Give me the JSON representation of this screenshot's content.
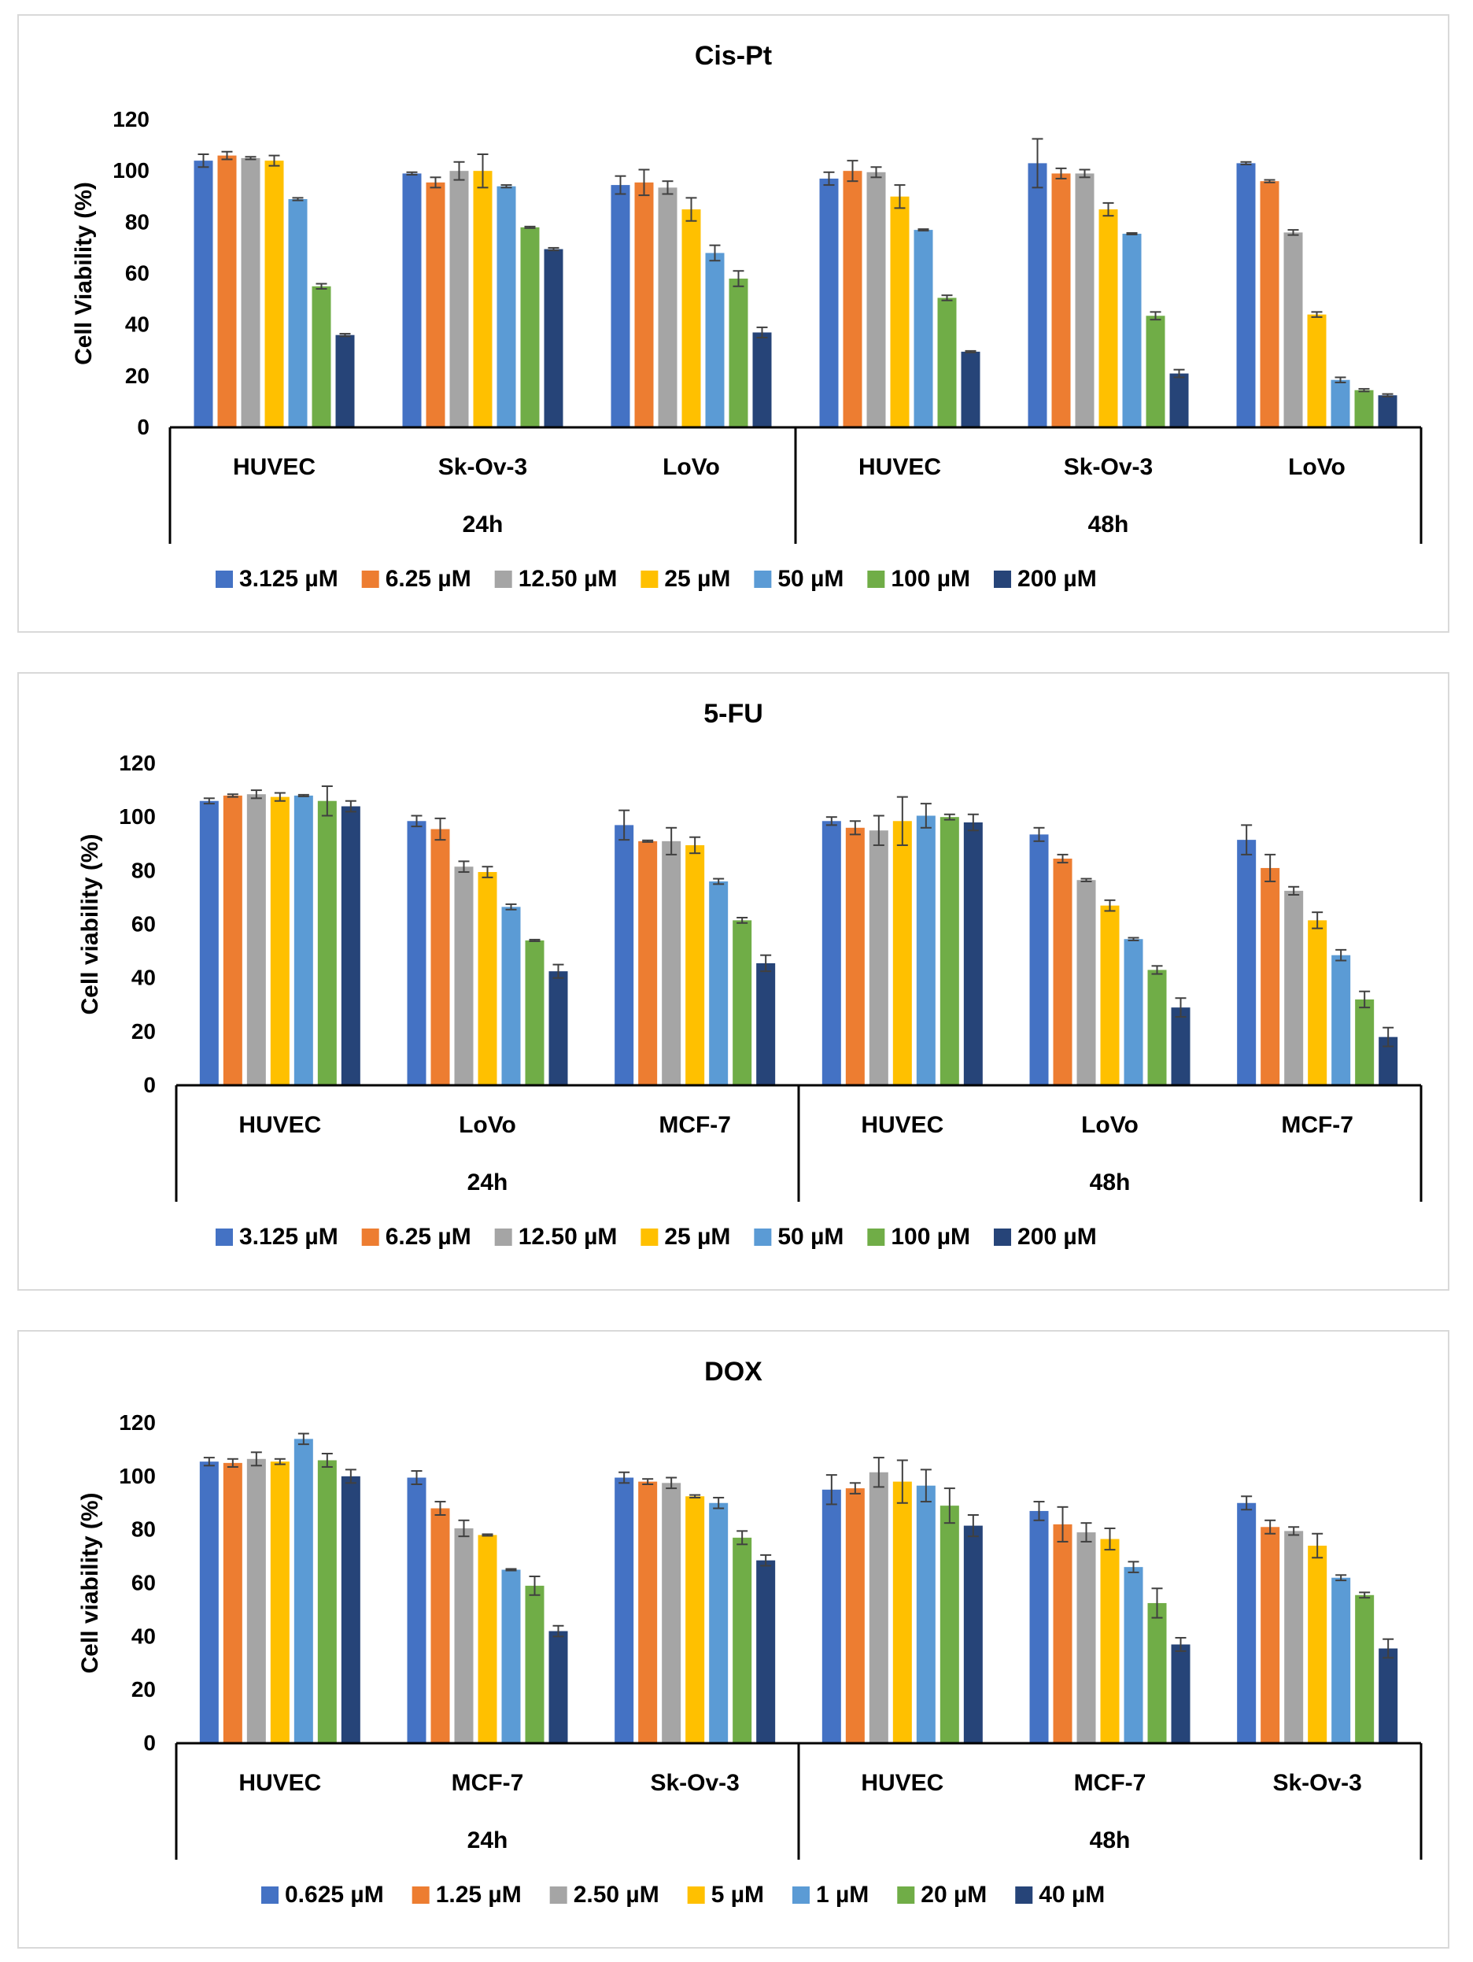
{
  "chart_data": [
    {
      "type": "bar",
      "title": "Cis-Pt",
      "ylabel": "Cell Viability (%)",
      "ylim": [
        0,
        120
      ],
      "yticks": [
        "0",
        "20",
        "40",
        "60",
        "80",
        "100",
        "120"
      ],
      "time_groups": [
        "24h",
        "48h"
      ],
      "categories": [
        "HUVEC",
        "Sk-Ov-3",
        "LoVo",
        "HUVEC",
        "Sk-Ov-3",
        "LoVo"
      ],
      "legend_position": "bottom",
      "series": [
        {
          "name": "3.125 µM",
          "color": "#4472c4",
          "values": [
            104,
            99,
            94.5,
            97,
            103,
            103
          ],
          "errors": [
            2.5,
            0.5,
            3.5,
            2.5,
            9.5,
            0.5
          ]
        },
        {
          "name": "6.25 µM",
          "color": "#ed7d31",
          "values": [
            106,
            95.5,
            95.5,
            100,
            99,
            96
          ],
          "errors": [
            1.5,
            2,
            5,
            4,
            2,
            0.5
          ]
        },
        {
          "name": "12.50 µM",
          "color": "#a5a5a5",
          "values": [
            105,
            100,
            93.5,
            99.5,
            99,
            76
          ],
          "errors": [
            0.5,
            3.5,
            2.5,
            2,
            1.5,
            1
          ]
        },
        {
          "name": "25 µM",
          "color": "#ffc000",
          "values": [
            104,
            100,
            85,
            90,
            85,
            44
          ],
          "errors": [
            2,
            6.5,
            4.5,
            4.5,
            2.5,
            1
          ]
        },
        {
          "name": "50 µM",
          "color": "#5b9bd5",
          "values": [
            89,
            94,
            68,
            77,
            75.5,
            18.5
          ],
          "errors": [
            0.5,
            0.5,
            3,
            0.3,
            0.3,
            1
          ]
        },
        {
          "name": "100 µM",
          "color": "#70ad47",
          "values": [
            55,
            78,
            58,
            50.5,
            43.5,
            14.5
          ],
          "errors": [
            1,
            0.3,
            3,
            1,
            1.5,
            0.5
          ]
        },
        {
          "name": "200 µM",
          "color": "#264478",
          "values": [
            36,
            69.5,
            37,
            29.5,
            21,
            12.5
          ],
          "errors": [
            0.5,
            0.5,
            2,
            0.3,
            1.5,
            0.5
          ]
        }
      ]
    },
    {
      "type": "bar",
      "title": "5-FU",
      "ylabel": "Cell viability (%)",
      "ylim": [
        0,
        120
      ],
      "yticks": [
        "0",
        "20",
        "40",
        "60",
        "80",
        "100",
        "120"
      ],
      "time_groups": [
        "24h",
        "48h"
      ],
      "categories": [
        "HUVEC",
        "LoVo",
        "MCF-7",
        "HUVEC",
        "LoVo",
        "MCF-7"
      ],
      "legend_position": "bottom",
      "series": [
        {
          "name": "3.125 µM",
          "color": "#4472c4",
          "values": [
            106,
            98.5,
            97,
            98.5,
            93.5,
            91.5
          ],
          "errors": [
            1,
            2,
            5.5,
            1.5,
            2.5,
            5.5
          ]
        },
        {
          "name": "6.25 µM",
          "color": "#ed7d31",
          "values": [
            108,
            95.5,
            91,
            96,
            84.5,
            81
          ],
          "errors": [
            0.5,
            4,
            0.3,
            2.5,
            1.5,
            5
          ]
        },
        {
          "name": "12.50 µM",
          "color": "#a5a5a5",
          "values": [
            108.5,
            81.5,
            91,
            95,
            76.5,
            72.5
          ],
          "errors": [
            1.5,
            2,
            5,
            5.5,
            0.5,
            1.5
          ]
        },
        {
          "name": "25 µM",
          "color": "#ffc000",
          "values": [
            107.5,
            79.5,
            89.5,
            98.5,
            67,
            61.5
          ],
          "errors": [
            1.5,
            2,
            3,
            9,
            2,
            3
          ]
        },
        {
          "name": "50 µM",
          "color": "#5b9bd5",
          "values": [
            108,
            66.5,
            76,
            100.5,
            54.5,
            48.5
          ],
          "errors": [
            0.3,
            1,
            1,
            4.5,
            0.5,
            2
          ]
        },
        {
          "name": "100 µM",
          "color": "#70ad47",
          "values": [
            106,
            54,
            61.5,
            100,
            43,
            32
          ],
          "errors": [
            5.5,
            0.3,
            1,
            1,
            1.5,
            3
          ]
        },
        {
          "name": "200 µM",
          "color": "#264478",
          "values": [
            104,
            42.5,
            45.5,
            98,
            29,
            18
          ],
          "errors": [
            2,
            2.5,
            3,
            3,
            3.5,
            3.5
          ]
        }
      ]
    },
    {
      "type": "bar",
      "title": "DOX",
      "ylabel": "Cell viability (%)",
      "ylim": [
        0,
        120
      ],
      "yticks": [
        "0",
        "20",
        "40",
        "60",
        "80",
        "100",
        "120"
      ],
      "time_groups": [
        "24h",
        "48h"
      ],
      "categories": [
        "HUVEC",
        "MCF-7",
        "Sk-Ov-3",
        "HUVEC",
        "MCF-7",
        "Sk-Ov-3"
      ],
      "legend_position": "bottom",
      "series": [
        {
          "name": "0.625 µM",
          "color": "#4472c4",
          "values": [
            105.5,
            99.5,
            99.5,
            95,
            87,
            90
          ],
          "errors": [
            1.5,
            2.5,
            2,
            5.5,
            3.5,
            2.5
          ]
        },
        {
          "name": "1.25 µM",
          "color": "#ed7d31",
          "values": [
            105,
            88,
            98,
            95.5,
            82,
            81
          ],
          "errors": [
            1.5,
            2.5,
            1,
            2,
            6.5,
            2.5
          ]
        },
        {
          "name": "2.50 µM",
          "color": "#a5a5a5",
          "values": [
            106.5,
            80.5,
            97.5,
            101.5,
            79,
            79.5
          ],
          "errors": [
            2.5,
            3,
            2,
            5.5,
            3.5,
            1.5
          ]
        },
        {
          "name": "5 µM",
          "color": "#ffc000",
          "values": [
            105.5,
            78,
            92.5,
            98,
            76.5,
            74
          ],
          "errors": [
            1,
            0.3,
            0.5,
            8,
            4,
            4.5
          ]
        },
        {
          "name": "1 µM",
          "color": "#5b9bd5",
          "values": [
            114,
            65,
            90,
            96.5,
            66,
            62
          ],
          "errors": [
            2,
            0.3,
            2,
            6,
            2,
            1
          ]
        },
        {
          "name": "20 µM",
          "color": "#70ad47",
          "values": [
            106,
            59,
            77,
            89,
            52.5,
            55.5
          ],
          "errors": [
            2.5,
            3.5,
            2.5,
            6.5,
            5.5,
            1
          ]
        },
        {
          "name": "40 µM",
          "color": "#264478",
          "values": [
            100,
            42,
            68.5,
            81.5,
            37,
            35.5
          ],
          "errors": [
            2.5,
            2,
            2,
            4,
            2.5,
            3.5
          ]
        }
      ]
    }
  ]
}
